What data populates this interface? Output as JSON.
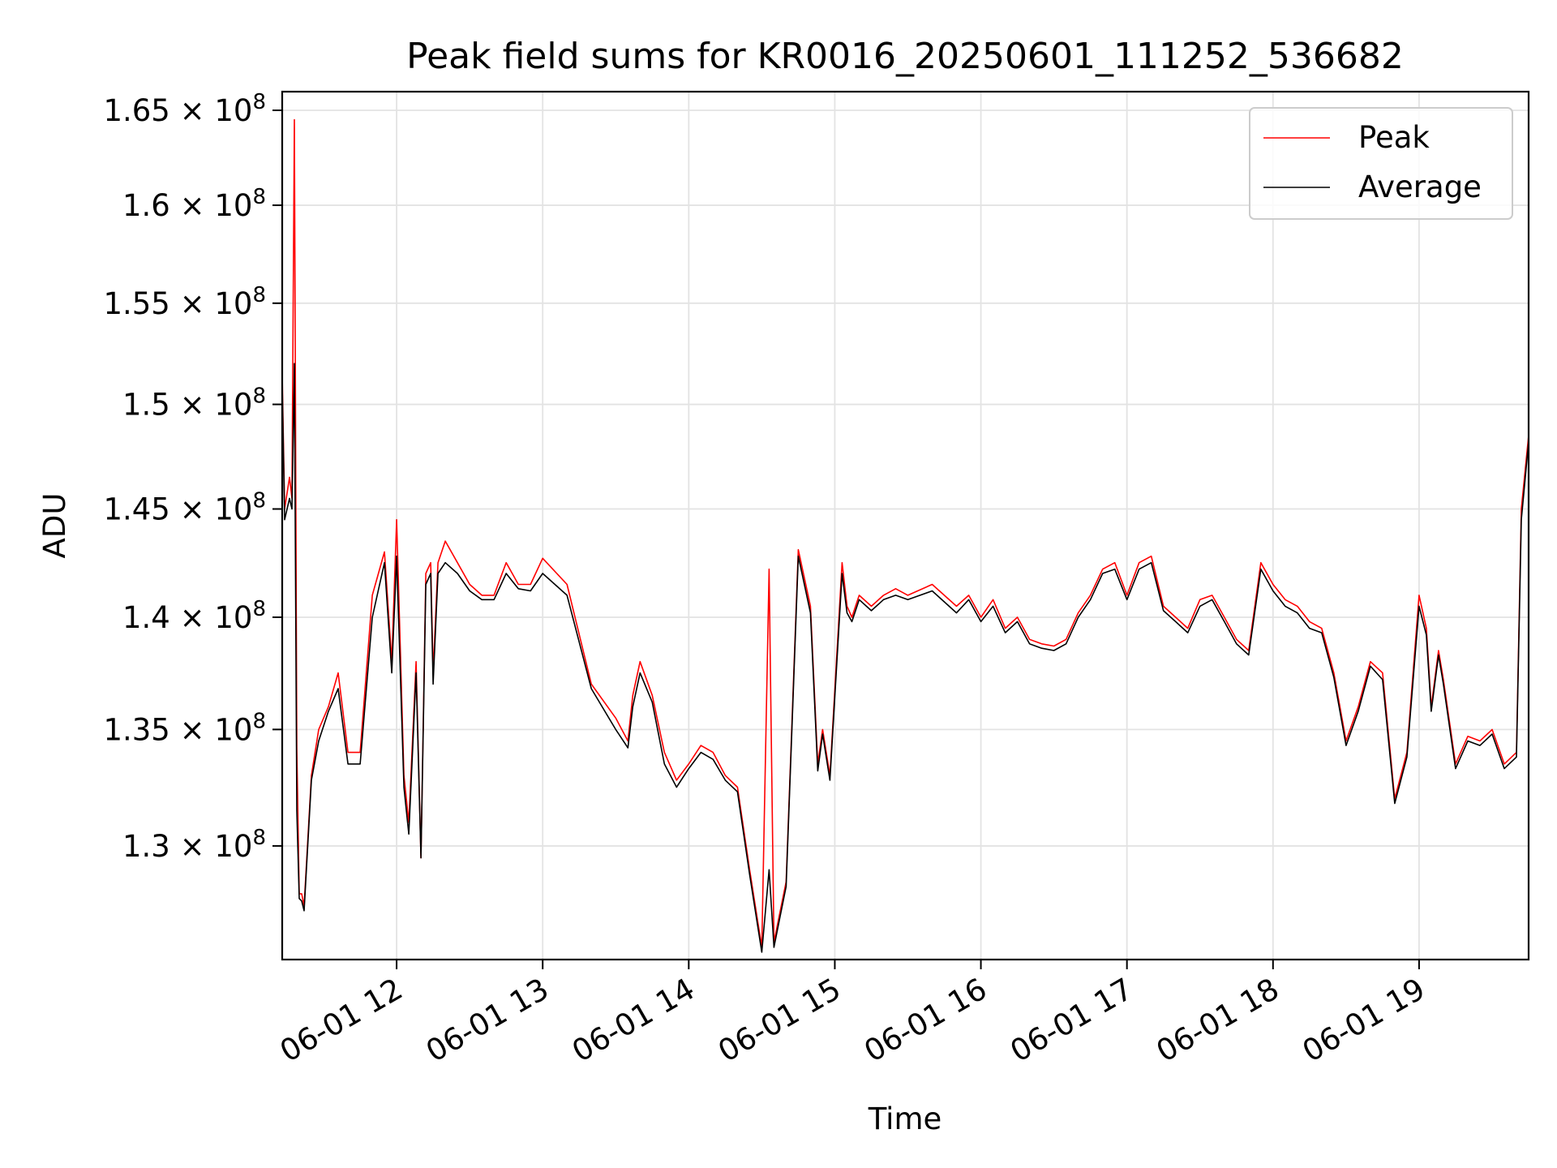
{
  "chart_data": {
    "type": "line",
    "title": "Peak field sums for KR0016_20250601_111252_536682",
    "xlabel": "Time",
    "ylabel": "ADU",
    "x_ticks": [
      "06-01 12",
      "06-01 13",
      "06-01 14",
      "06-01 15",
      "06-01 16",
      "06-01 17",
      "06-01 18",
      "06-01 19"
    ],
    "y_ticks": [
      {
        "mantissa": "1.3",
        "exponent": "8",
        "value": 130000000
      },
      {
        "mantissa": "1.35",
        "exponent": "8",
        "value": 135000000
      },
      {
        "mantissa": "1.4",
        "exponent": "8",
        "value": 140000000
      },
      {
        "mantissa": "1.45",
        "exponent": "8",
        "value": 145000000
      },
      {
        "mantissa": "1.5",
        "exponent": "8",
        "value": 150000000
      },
      {
        "mantissa": "1.55",
        "exponent": "8",
        "value": 155000000
      },
      {
        "mantissa": "1.6",
        "exponent": "8",
        "value": 160000000
      },
      {
        "mantissa": "1.65",
        "exponent": "8",
        "value": 165000000
      }
    ],
    "y_scale": "log",
    "xlim": [
      "2025-06-01 11:13",
      "2025-06-01 19:45"
    ],
    "ylim": [
      125300000,
      166000000
    ],
    "grid": true,
    "legend_position": "top-right",
    "series": [
      {
        "name": "Peak",
        "color": "#ff0000",
        "x": [
          "11:13",
          "11:14",
          "11:16",
          "11:17",
          "11:18",
          "11:19",
          "11:20",
          "11:21",
          "11:22",
          "11:25",
          "11:28",
          "11:32",
          "11:36",
          "11:40",
          "11:45",
          "11:50",
          "11:55",
          "11:58",
          "12:00",
          "12:03",
          "12:05",
          "12:08",
          "12:10",
          "12:12",
          "12:14",
          "12:15",
          "12:17",
          "12:20",
          "12:25",
          "12:30",
          "12:35",
          "12:40",
          "12:45",
          "12:50",
          "12:55",
          "13:00",
          "13:10",
          "13:20",
          "13:30",
          "13:35",
          "13:37",
          "13:40",
          "13:45",
          "13:50",
          "13:55",
          "14:00",
          "14:05",
          "14:10",
          "14:15",
          "14:20",
          "14:25",
          "14:30",
          "14:33",
          "14:35",
          "14:37",
          "14:40",
          "14:45",
          "14:50",
          "14:53",
          "14:55",
          "14:58",
          "15:03",
          "15:05",
          "15:07",
          "15:10",
          "15:15",
          "15:20",
          "15:25",
          "15:30",
          "15:40",
          "15:50",
          "15:55",
          "16:00",
          "16:05",
          "16:10",
          "16:15",
          "16:20",
          "16:25",
          "16:30",
          "16:35",
          "16:40",
          "16:45",
          "16:50",
          "16:55",
          "17:00",
          "17:05",
          "17:10",
          "17:15",
          "17:20",
          "17:25",
          "17:30",
          "17:35",
          "17:40",
          "17:45",
          "17:50",
          "17:55",
          "18:00",
          "18:05",
          "18:10",
          "18:15",
          "18:20",
          "18:25",
          "18:30",
          "18:35",
          "18:40",
          "18:45",
          "18:50",
          "18:55",
          "19:00",
          "19:03",
          "19:05",
          "19:08",
          "19:10",
          "19:15",
          "19:20",
          "19:25",
          "19:30",
          "19:35",
          "19:40",
          "19:42",
          "19:45"
        ],
        "y": [
          151500000,
          145000000,
          146500000,
          145500000,
          164500000,
          134200000,
          128000000,
          128000000,
          127500000,
          133000000,
          135000000,
          136000000,
          137500000,
          134000000,
          134000000,
          141000000,
          143000000,
          138000000,
          144500000,
          133000000,
          131000000,
          138000000,
          129500000,
          142000000,
          142500000,
          137500000,
          142500000,
          143500000,
          142500000,
          141500000,
          141000000,
          141000000,
          142500000,
          141500000,
          141500000,
          142700000,
          141500000,
          137000000,
          135500000,
          134500000,
          136500000,
          138000000,
          136500000,
          134000000,
          132800000,
          133500000,
          134300000,
          134000000,
          133000000,
          132500000,
          129000000,
          125800000,
          142200000,
          126000000,
          127000000,
          128500000,
          143100000,
          140500000,
          133500000,
          135000000,
          133000000,
          142500000,
          140500000,
          140000000,
          141000000,
          140500000,
          141000000,
          141300000,
          141000000,
          141500000,
          140500000,
          141000000,
          140000000,
          140800000,
          139500000,
          140000000,
          139000000,
          138800000,
          138700000,
          139000000,
          140200000,
          141000000,
          142200000,
          142500000,
          141000000,
          142500000,
          142800000,
          140500000,
          140000000,
          139500000,
          140800000,
          141000000,
          140000000,
          139000000,
          138500000,
          142500000,
          141500000,
          140800000,
          140500000,
          139800000,
          139500000,
          137500000,
          134500000,
          136000000,
          138000000,
          137500000,
          132000000,
          134000000,
          141000000,
          139500000,
          136000000,
          138500000,
          137200000,
          133500000,
          134700000,
          134500000,
          135000000,
          133500000,
          134000000,
          145000000,
          148500000
        ]
      },
      {
        "name": "Average",
        "color": "#000000",
        "x": [
          "11:13",
          "11:14",
          "11:16",
          "11:17",
          "11:18",
          "11:19",
          "11:20",
          "11:21",
          "11:22",
          "11:25",
          "11:28",
          "11:32",
          "11:36",
          "11:40",
          "11:45",
          "11:50",
          "11:55",
          "11:58",
          "12:00",
          "12:03",
          "12:05",
          "12:08",
          "12:10",
          "12:12",
          "12:14",
          "12:15",
          "12:17",
          "12:20",
          "12:25",
          "12:30",
          "12:35",
          "12:40",
          "12:45",
          "12:50",
          "12:55",
          "13:00",
          "13:10",
          "13:20",
          "13:30",
          "13:35",
          "13:37",
          "13:40",
          "13:45",
          "13:50",
          "13:55",
          "14:00",
          "14:05",
          "14:10",
          "14:15",
          "14:20",
          "14:25",
          "14:30",
          "14:33",
          "14:35",
          "14:37",
          "14:40",
          "14:45",
          "14:50",
          "14:53",
          "14:55",
          "14:58",
          "15:03",
          "15:05",
          "15:07",
          "15:10",
          "15:15",
          "15:20",
          "15:25",
          "15:30",
          "15:40",
          "15:50",
          "15:55",
          "16:00",
          "16:05",
          "16:10",
          "16:15",
          "16:20",
          "16:25",
          "16:30",
          "16:35",
          "16:40",
          "16:45",
          "16:50",
          "16:55",
          "17:00",
          "17:05",
          "17:10",
          "17:15",
          "17:20",
          "17:25",
          "17:30",
          "17:35",
          "17:40",
          "17:45",
          "17:50",
          "17:55",
          "18:00",
          "18:05",
          "18:10",
          "18:15",
          "18:20",
          "18:25",
          "18:30",
          "18:35",
          "18:40",
          "18:45",
          "18:50",
          "18:55",
          "19:00",
          "19:03",
          "19:05",
          "19:08",
          "19:10",
          "19:15",
          "19:20",
          "19:25",
          "19:30",
          "19:35",
          "19:40",
          "19:42",
          "19:45"
        ],
        "y": [
          151000000,
          144500000,
          145500000,
          145000000,
          152000000,
          131500000,
          127800000,
          127700000,
          127300000,
          132800000,
          134500000,
          135800000,
          136800000,
          133500000,
          133500000,
          140000000,
          142500000,
          137500000,
          142800000,
          132500000,
          130500000,
          137500000,
          129500000,
          141500000,
          142000000,
          137000000,
          142000000,
          142500000,
          142000000,
          141200000,
          140800000,
          140800000,
          142000000,
          141300000,
          141200000,
          142000000,
          141000000,
          136800000,
          135000000,
          134200000,
          136000000,
          137500000,
          136200000,
          133500000,
          132500000,
          133300000,
          134000000,
          133700000,
          132800000,
          132300000,
          128800000,
          125600000,
          129000000,
          125800000,
          126800000,
          128300000,
          142800000,
          140200000,
          133200000,
          134800000,
          132800000,
          142000000,
          140200000,
          139800000,
          140800000,
          140300000,
          140800000,
          141000000,
          140800000,
          141200000,
          140200000,
          140800000,
          139800000,
          140500000,
          139300000,
          139800000,
          138800000,
          138600000,
          138500000,
          138800000,
          140000000,
          140800000,
          142000000,
          142200000,
          140800000,
          142200000,
          142500000,
          140300000,
          139800000,
          139300000,
          140500000,
          140800000,
          139800000,
          138800000,
          138300000,
          142200000,
          141200000,
          140500000,
          140200000,
          139500000,
          139300000,
          137300000,
          134300000,
          135800000,
          137800000,
          137200000,
          131800000,
          133800000,
          140500000,
          139200000,
          135800000,
          138300000,
          137000000,
          133300000,
          134500000,
          134300000,
          134800000,
          133300000,
          133800000,
          144500000,
          148200000
        ]
      }
    ]
  }
}
